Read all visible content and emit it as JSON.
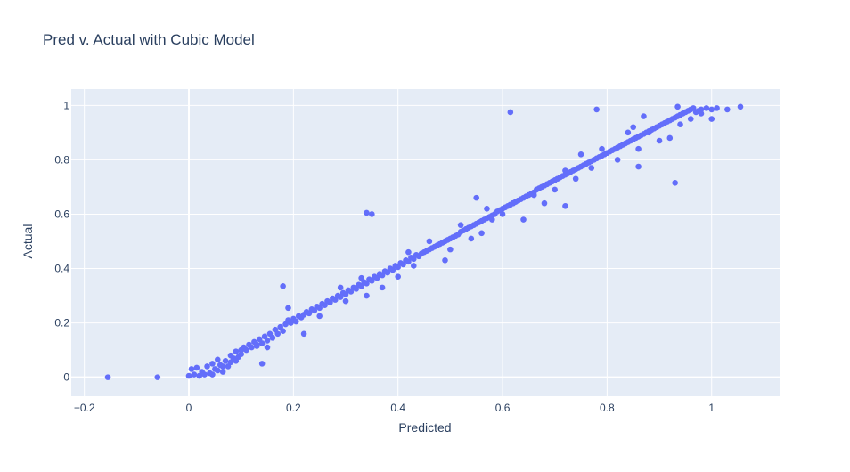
{
  "chart_data": {
    "type": "scatter",
    "title": "Pred v. Actual with Cubic Model",
    "xlabel": "Predicted",
    "ylabel": "Actual",
    "xlim": [
      -0.225,
      1.13
    ],
    "ylim": [
      -0.07,
      1.06
    ],
    "x_ticks": [
      -0.2,
      0,
      0.2,
      0.4,
      0.6,
      0.8,
      1
    ],
    "x_tick_labels": [
      "−0.2",
      "0",
      "0.2",
      "0.4",
      "0.6",
      "0.8",
      "1"
    ],
    "y_ticks": [
      0,
      0.2,
      0.4,
      0.6,
      0.8,
      1
    ],
    "y_tick_labels": [
      "0",
      "0.2",
      "0.4",
      "0.6",
      "0.8",
      "1"
    ],
    "grid": true,
    "legend": "none",
    "colors": {
      "marker": "#636efa",
      "plot_bg": "#e5ecf6",
      "grid": "#ffffff",
      "text": "#2a3f5f"
    },
    "series": [
      {
        "points": [
          [
            -0.155,
            0.0
          ],
          [
            -0.06,
            0.0
          ],
          [
            0.0,
            0.005
          ],
          [
            0.005,
            0.03
          ],
          [
            0.01,
            0.01
          ],
          [
            0.015,
            0.035
          ],
          [
            0.02,
            0.005
          ],
          [
            0.025,
            0.02
          ],
          [
            0.03,
            0.01
          ],
          [
            0.035,
            0.04
          ],
          [
            0.04,
            0.015
          ],
          [
            0.045,
            0.05
          ],
          [
            0.05,
            0.03
          ],
          [
            0.055,
            0.065
          ],
          [
            0.055,
            0.025
          ],
          [
            0.06,
            0.045
          ],
          [
            0.065,
            0.02
          ],
          [
            0.07,
            0.06
          ],
          [
            0.075,
            0.04
          ],
          [
            0.08,
            0.08
          ],
          [
            0.08,
            0.055
          ],
          [
            0.085,
            0.07
          ],
          [
            0.09,
            0.095
          ],
          [
            0.095,
            0.075
          ],
          [
            0.1,
            0.1
          ],
          [
            0.1,
            0.085
          ],
          [
            0.105,
            0.11
          ],
          [
            0.11,
            0.1
          ],
          [
            0.115,
            0.12
          ],
          [
            0.12,
            0.11
          ],
          [
            0.125,
            0.13
          ],
          [
            0.13,
            0.115
          ],
          [
            0.135,
            0.14
          ],
          [
            0.14,
            0.125
          ],
          [
            0.145,
            0.15
          ],
          [
            0.15,
            0.135
          ],
          [
            0.155,
            0.16
          ],
          [
            0.16,
            0.145
          ],
          [
            0.165,
            0.175
          ],
          [
            0.17,
            0.16
          ],
          [
            0.175,
            0.185
          ],
          [
            0.18,
            0.17
          ],
          [
            0.185,
            0.195
          ],
          [
            0.19,
            0.21
          ],
          [
            0.195,
            0.2
          ],
          [
            0.2,
            0.215
          ],
          [
            0.205,
            0.205
          ],
          [
            0.21,
            0.225
          ],
          [
            0.215,
            0.22
          ],
          [
            0.22,
            0.23
          ],
          [
            0.225,
            0.24
          ],
          [
            0.23,
            0.235
          ],
          [
            0.235,
            0.25
          ],
          [
            0.24,
            0.245
          ],
          [
            0.245,
            0.26
          ],
          [
            0.25,
            0.255
          ],
          [
            0.255,
            0.27
          ],
          [
            0.26,
            0.265
          ],
          [
            0.265,
            0.28
          ],
          [
            0.27,
            0.275
          ],
          [
            0.275,
            0.29
          ],
          [
            0.28,
            0.285
          ],
          [
            0.285,
            0.3
          ],
          [
            0.29,
            0.295
          ],
          [
            0.295,
            0.31
          ],
          [
            0.3,
            0.305
          ],
          [
            0.305,
            0.32
          ],
          [
            0.31,
            0.315
          ],
          [
            0.315,
            0.33
          ],
          [
            0.32,
            0.325
          ],
          [
            0.325,
            0.34
          ],
          [
            0.33,
            0.335
          ],
          [
            0.335,
            0.35
          ],
          [
            0.34,
            0.345
          ],
          [
            0.345,
            0.36
          ],
          [
            0.35,
            0.355
          ],
          [
            0.355,
            0.37
          ],
          [
            0.36,
            0.365
          ],
          [
            0.365,
            0.38
          ],
          [
            0.37,
            0.375
          ],
          [
            0.375,
            0.39
          ],
          [
            0.38,
            0.385
          ],
          [
            0.385,
            0.4
          ],
          [
            0.39,
            0.395
          ],
          [
            0.395,
            0.41
          ],
          [
            0.4,
            0.405
          ],
          [
            0.405,
            0.42
          ],
          [
            0.41,
            0.415
          ],
          [
            0.415,
            0.43
          ],
          [
            0.42,
            0.425
          ],
          [
            0.425,
            0.44
          ],
          [
            0.43,
            0.435
          ],
          [
            0.435,
            0.45
          ],
          [
            0.44,
            0.445
          ],
          [
            0.445,
            0.455
          ],
          [
            0.45,
            0.46
          ],
          [
            0.455,
            0.465
          ],
          [
            0.46,
            0.47
          ],
          [
            0.465,
            0.475
          ],
          [
            0.47,
            0.48
          ],
          [
            0.475,
            0.485
          ],
          [
            0.48,
            0.49
          ],
          [
            0.485,
            0.495
          ],
          [
            0.49,
            0.5
          ],
          [
            0.495,
            0.505
          ],
          [
            0.5,
            0.51
          ],
          [
            0.505,
            0.515
          ],
          [
            0.51,
            0.52
          ],
          [
            0.515,
            0.525
          ],
          [
            0.52,
            0.535
          ],
          [
            0.525,
            0.54
          ],
          [
            0.53,
            0.545
          ],
          [
            0.535,
            0.55
          ],
          [
            0.54,
            0.555
          ],
          [
            0.545,
            0.56
          ],
          [
            0.55,
            0.565
          ],
          [
            0.555,
            0.57
          ],
          [
            0.56,
            0.575
          ],
          [
            0.565,
            0.58
          ],
          [
            0.57,
            0.585
          ],
          [
            0.575,
            0.59
          ],
          [
            0.58,
            0.595
          ],
          [
            0.585,
            0.6
          ],
          [
            0.59,
            0.61
          ],
          [
            0.595,
            0.615
          ],
          [
            0.6,
            0.62
          ],
          [
            0.605,
            0.625
          ],
          [
            0.61,
            0.63
          ],
          [
            0.615,
            0.635
          ],
          [
            0.62,
            0.64
          ],
          [
            0.625,
            0.645
          ],
          [
            0.63,
            0.65
          ],
          [
            0.635,
            0.655
          ],
          [
            0.64,
            0.66
          ],
          [
            0.645,
            0.665
          ],
          [
            0.65,
            0.67
          ],
          [
            0.655,
            0.675
          ],
          [
            0.66,
            0.68
          ],
          [
            0.665,
            0.69
          ],
          [
            0.67,
            0.695
          ],
          [
            0.675,
            0.7
          ],
          [
            0.68,
            0.705
          ],
          [
            0.685,
            0.71
          ],
          [
            0.69,
            0.715
          ],
          [
            0.695,
            0.72
          ],
          [
            0.7,
            0.725
          ],
          [
            0.705,
            0.73
          ],
          [
            0.71,
            0.735
          ],
          [
            0.715,
            0.74
          ],
          [
            0.72,
            0.745
          ],
          [
            0.725,
            0.75
          ],
          [
            0.73,
            0.755
          ],
          [
            0.735,
            0.76
          ],
          [
            0.74,
            0.765
          ],
          [
            0.745,
            0.77
          ],
          [
            0.75,
            0.775
          ],
          [
            0.755,
            0.78
          ],
          [
            0.76,
            0.785
          ],
          [
            0.765,
            0.79
          ],
          [
            0.77,
            0.795
          ],
          [
            0.775,
            0.8
          ],
          [
            0.78,
            0.805
          ],
          [
            0.785,
            0.81
          ],
          [
            0.79,
            0.815
          ],
          [
            0.795,
            0.82
          ],
          [
            0.8,
            0.825
          ],
          [
            0.805,
            0.83
          ],
          [
            0.81,
            0.835
          ],
          [
            0.815,
            0.84
          ],
          [
            0.82,
            0.845
          ],
          [
            0.825,
            0.85
          ],
          [
            0.83,
            0.855
          ],
          [
            0.835,
            0.86
          ],
          [
            0.84,
            0.865
          ],
          [
            0.845,
            0.87
          ],
          [
            0.85,
            0.875
          ],
          [
            0.855,
            0.88
          ],
          [
            0.86,
            0.885
          ],
          [
            0.865,
            0.89
          ],
          [
            0.87,
            0.895
          ],
          [
            0.875,
            0.9
          ],
          [
            0.88,
            0.905
          ],
          [
            0.885,
            0.91
          ],
          [
            0.89,
            0.915
          ],
          [
            0.895,
            0.92
          ],
          [
            0.9,
            0.925
          ],
          [
            0.905,
            0.93
          ],
          [
            0.91,
            0.935
          ],
          [
            0.915,
            0.94
          ],
          [
            0.92,
            0.945
          ],
          [
            0.925,
            0.95
          ],
          [
            0.93,
            0.955
          ],
          [
            0.935,
            0.96
          ],
          [
            0.94,
            0.965
          ],
          [
            0.945,
            0.97
          ],
          [
            0.95,
            0.975
          ],
          [
            0.955,
            0.98
          ],
          [
            0.96,
            0.985
          ],
          [
            0.965,
            0.99
          ],
          [
            0.97,
            0.975
          ],
          [
            0.975,
            0.98
          ],
          [
            0.98,
            0.985
          ],
          [
            0.99,
            0.99
          ],
          [
            1.0,
            0.985
          ],
          [
            1.01,
            0.99
          ],
          [
            1.03,
            0.985
          ],
          [
            1.055,
            0.995
          ],
          [
            0.045,
            0.01
          ],
          [
            0.065,
            0.04
          ],
          [
            0.09,
            0.06
          ],
          [
            0.13,
            0.12
          ],
          [
            0.15,
            0.11
          ],
          [
            0.14,
            0.05
          ],
          [
            0.19,
            0.255
          ],
          [
            0.18,
            0.335
          ],
          [
            0.22,
            0.16
          ],
          [
            0.25,
            0.225
          ],
          [
            0.29,
            0.33
          ],
          [
            0.3,
            0.28
          ],
          [
            0.33,
            0.365
          ],
          [
            0.34,
            0.3
          ],
          [
            0.37,
            0.33
          ],
          [
            0.4,
            0.37
          ],
          [
            0.42,
            0.46
          ],
          [
            0.43,
            0.41
          ],
          [
            0.46,
            0.5
          ],
          [
            0.49,
            0.43
          ],
          [
            0.5,
            0.47
          ],
          [
            0.52,
            0.56
          ],
          [
            0.54,
            0.51
          ],
          [
            0.56,
            0.53
          ],
          [
            0.55,
            0.66
          ],
          [
            0.57,
            0.62
          ],
          [
            0.58,
            0.58
          ],
          [
            0.6,
            0.6
          ],
          [
            0.62,
            0.64
          ],
          [
            0.64,
            0.58
          ],
          [
            0.66,
            0.67
          ],
          [
            0.68,
            0.64
          ],
          [
            0.7,
            0.69
          ],
          [
            0.72,
            0.76
          ],
          [
            0.74,
            0.73
          ],
          [
            0.75,
            0.82
          ],
          [
            0.77,
            0.77
          ],
          [
            0.79,
            0.84
          ],
          [
            0.82,
            0.8
          ],
          [
            0.84,
            0.9
          ],
          [
            0.86,
            0.84
          ],
          [
            0.88,
            0.9
          ],
          [
            0.9,
            0.87
          ],
          [
            0.92,
            0.88
          ],
          [
            0.94,
            0.93
          ],
          [
            0.96,
            0.95
          ],
          [
            0.98,
            0.97
          ],
          [
            1.0,
            0.95
          ],
          [
            0.34,
            0.605
          ],
          [
            0.35,
            0.6
          ],
          [
            0.615,
            0.975
          ],
          [
            0.78,
            0.985
          ],
          [
            0.935,
            0.995
          ],
          [
            0.93,
            0.715
          ],
          [
            0.86,
            0.775
          ],
          [
            0.72,
            0.63
          ],
          [
            0.85,
            0.92
          ],
          [
            0.87,
            0.96
          ]
        ]
      }
    ]
  }
}
